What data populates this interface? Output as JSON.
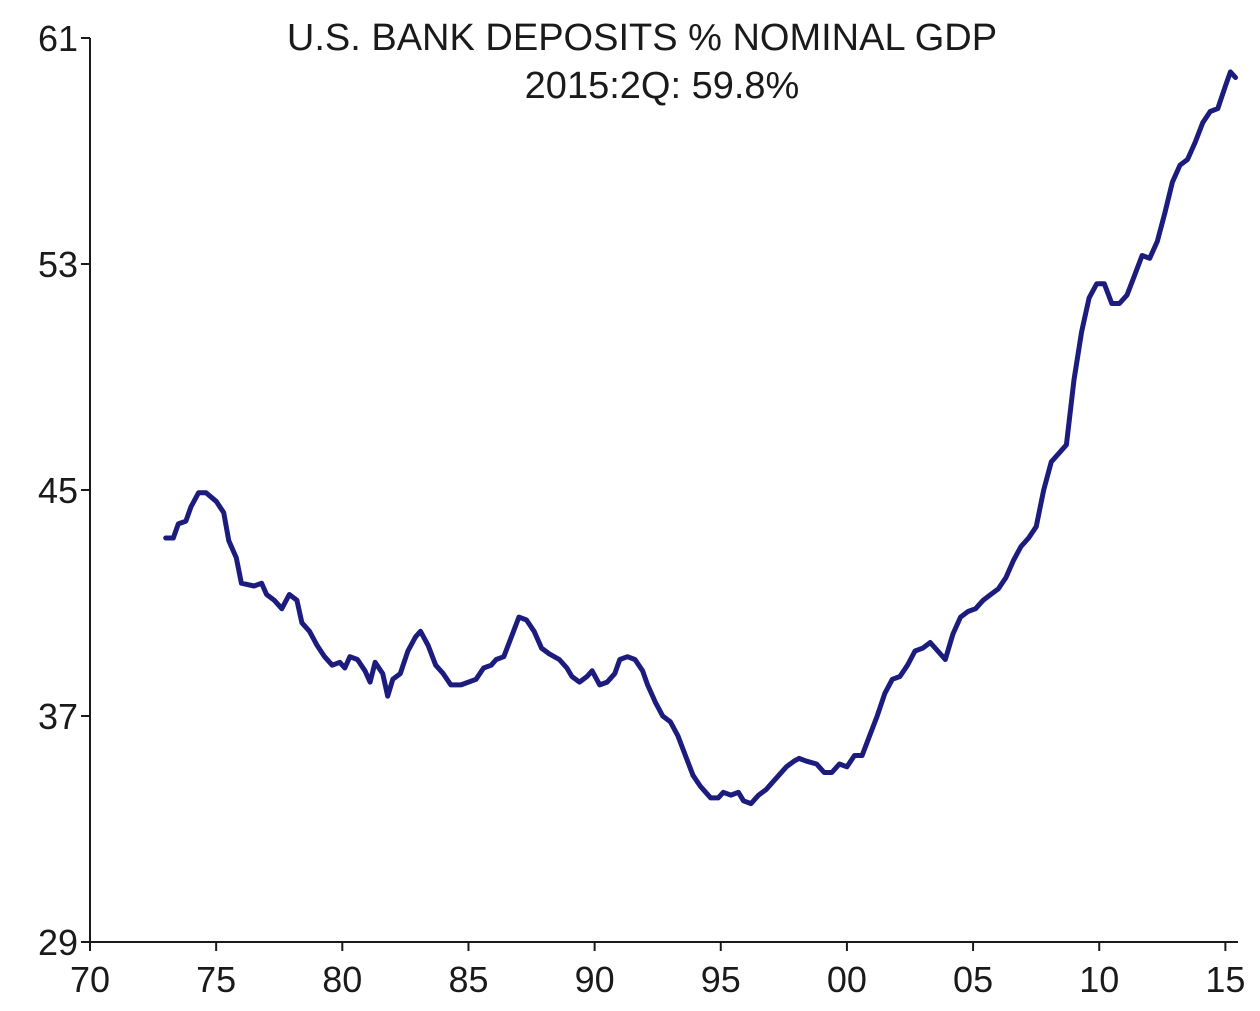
{
  "chart_data": {
    "type": "line",
    "title": "U.S. BANK DEPOSITS % NOMINAL GDP",
    "subtitle": "2015:2Q: 59.8%",
    "xlabel": "",
    "ylabel": "",
    "xlim": [
      1970,
      2015.5
    ],
    "ylim": [
      29,
      61
    ],
    "yticks": [
      29,
      37,
      45,
      53,
      61
    ],
    "xticks": [
      {
        "value": 1970,
        "label": "70"
      },
      {
        "value": 1975,
        "label": "75"
      },
      {
        "value": 1980,
        "label": "80"
      },
      {
        "value": 1985,
        "label": "85"
      },
      {
        "value": 1990,
        "label": "90"
      },
      {
        "value": 1995,
        "label": "95"
      },
      {
        "value": 2000,
        "label": "00"
      },
      {
        "value": 2005,
        "label": "05"
      },
      {
        "value": 2010,
        "label": "10"
      },
      {
        "value": 2015,
        "label": "15"
      }
    ],
    "grid": false,
    "series_color": "#1c1c7e",
    "series": [
      {
        "points": [
          [
            1973.0,
            43.3
          ],
          [
            1973.3,
            43.3
          ],
          [
            1973.5,
            43.8
          ],
          [
            1973.8,
            43.9
          ],
          [
            1974.0,
            44.4
          ],
          [
            1974.3,
            44.9
          ],
          [
            1974.6,
            44.9
          ],
          [
            1975.0,
            44.6
          ],
          [
            1975.3,
            44.2
          ],
          [
            1975.5,
            43.2
          ],
          [
            1975.8,
            42.6
          ],
          [
            1976.0,
            41.7
          ],
          [
            1976.5,
            41.6
          ],
          [
            1976.8,
            41.7
          ],
          [
            1977.0,
            41.3
          ],
          [
            1977.3,
            41.1
          ],
          [
            1977.6,
            40.8
          ],
          [
            1977.9,
            41.3
          ],
          [
            1978.2,
            41.1
          ],
          [
            1978.4,
            40.3
          ],
          [
            1978.7,
            40.0
          ],
          [
            1979.0,
            39.5
          ],
          [
            1979.3,
            39.1
          ],
          [
            1979.6,
            38.8
          ],
          [
            1979.9,
            38.9
          ],
          [
            1980.1,
            38.7
          ],
          [
            1980.3,
            39.1
          ],
          [
            1980.6,
            39.0
          ],
          [
            1980.9,
            38.6
          ],
          [
            1981.1,
            38.2
          ],
          [
            1981.3,
            38.9
          ],
          [
            1981.6,
            38.5
          ],
          [
            1981.8,
            37.7
          ],
          [
            1982.0,
            38.3
          ],
          [
            1982.3,
            38.5
          ],
          [
            1982.6,
            39.3
          ],
          [
            1982.9,
            39.8
          ],
          [
            1983.1,
            40.0
          ],
          [
            1983.4,
            39.5
          ],
          [
            1983.7,
            38.8
          ],
          [
            1984.0,
            38.5
          ],
          [
            1984.3,
            38.1
          ],
          [
            1984.7,
            38.1
          ],
          [
            1985.0,
            38.2
          ],
          [
            1985.3,
            38.3
          ],
          [
            1985.6,
            38.7
          ],
          [
            1985.9,
            38.8
          ],
          [
            1986.1,
            39.0
          ],
          [
            1986.4,
            39.1
          ],
          [
            1986.7,
            39.8
          ],
          [
            1987.0,
            40.5
          ],
          [
            1987.3,
            40.4
          ],
          [
            1987.6,
            40.0
          ],
          [
            1987.9,
            39.4
          ],
          [
            1988.2,
            39.2
          ],
          [
            1988.6,
            39.0
          ],
          [
            1988.9,
            38.7
          ],
          [
            1989.1,
            38.4
          ],
          [
            1989.4,
            38.2
          ],
          [
            1989.7,
            38.4
          ],
          [
            1989.9,
            38.6
          ],
          [
            1990.2,
            38.1
          ],
          [
            1990.5,
            38.2
          ],
          [
            1990.8,
            38.5
          ],
          [
            1991.0,
            39.0
          ],
          [
            1991.3,
            39.1
          ],
          [
            1991.6,
            39.0
          ],
          [
            1991.9,
            38.6
          ],
          [
            1992.1,
            38.1
          ],
          [
            1992.4,
            37.5
          ],
          [
            1992.7,
            37.0
          ],
          [
            1993.0,
            36.8
          ],
          [
            1993.3,
            36.3
          ],
          [
            1993.6,
            35.6
          ],
          [
            1993.9,
            34.9
          ],
          [
            1994.2,
            34.5
          ],
          [
            1994.6,
            34.1
          ],
          [
            1994.9,
            34.1
          ],
          [
            1995.1,
            34.3
          ],
          [
            1995.4,
            34.2
          ],
          [
            1995.7,
            34.3
          ],
          [
            1995.9,
            34.0
          ],
          [
            1996.2,
            33.9
          ],
          [
            1996.5,
            34.2
          ],
          [
            1996.8,
            34.4
          ],
          [
            1997.0,
            34.6
          ],
          [
            1997.3,
            34.9
          ],
          [
            1997.6,
            35.2
          ],
          [
            1997.9,
            35.4
          ],
          [
            1998.1,
            35.5
          ],
          [
            1998.4,
            35.4
          ],
          [
            1998.8,
            35.3
          ],
          [
            1999.1,
            35.0
          ],
          [
            1999.4,
            35.0
          ],
          [
            1999.7,
            35.3
          ],
          [
            2000.0,
            35.2
          ],
          [
            2000.3,
            35.6
          ],
          [
            2000.6,
            35.6
          ],
          [
            2000.9,
            36.3
          ],
          [
            2001.2,
            37.0
          ],
          [
            2001.5,
            37.8
          ],
          [
            2001.8,
            38.3
          ],
          [
            2002.1,
            38.4
          ],
          [
            2002.4,
            38.8
          ],
          [
            2002.7,
            39.3
          ],
          [
            2003.0,
            39.4
          ],
          [
            2003.3,
            39.6
          ],
          [
            2003.6,
            39.3
          ],
          [
            2003.9,
            39.0
          ],
          [
            2004.2,
            39.9
          ],
          [
            2004.5,
            40.5
          ],
          [
            2004.8,
            40.7
          ],
          [
            2005.1,
            40.8
          ],
          [
            2005.4,
            41.1
          ],
          [
            2005.7,
            41.3
          ],
          [
            2006.0,
            41.5
          ],
          [
            2006.3,
            41.9
          ],
          [
            2006.6,
            42.5
          ],
          [
            2006.9,
            43.0
          ],
          [
            2007.2,
            43.3
          ],
          [
            2007.5,
            43.7
          ],
          [
            2007.8,
            45.0
          ],
          [
            2008.1,
            46.0
          ],
          [
            2008.4,
            46.3
          ],
          [
            2008.7,
            46.6
          ],
          [
            2009.0,
            48.9
          ],
          [
            2009.3,
            50.6
          ],
          [
            2009.6,
            51.8
          ],
          [
            2009.9,
            52.3
          ],
          [
            2010.2,
            52.3
          ],
          [
            2010.5,
            51.6
          ],
          [
            2010.8,
            51.6
          ],
          [
            2011.1,
            51.9
          ],
          [
            2011.4,
            52.6
          ],
          [
            2011.7,
            53.3
          ],
          [
            2012.0,
            53.2
          ],
          [
            2012.3,
            53.8
          ],
          [
            2012.6,
            54.8
          ],
          [
            2012.9,
            55.9
          ],
          [
            2013.2,
            56.5
          ],
          [
            2013.5,
            56.7
          ],
          [
            2013.8,
            57.3
          ],
          [
            2014.1,
            58.0
          ],
          [
            2014.4,
            58.4
          ],
          [
            2014.7,
            58.5
          ],
          [
            2015.0,
            59.3
          ],
          [
            2015.2,
            59.8
          ],
          [
            2015.4,
            59.6
          ]
        ]
      }
    ]
  }
}
